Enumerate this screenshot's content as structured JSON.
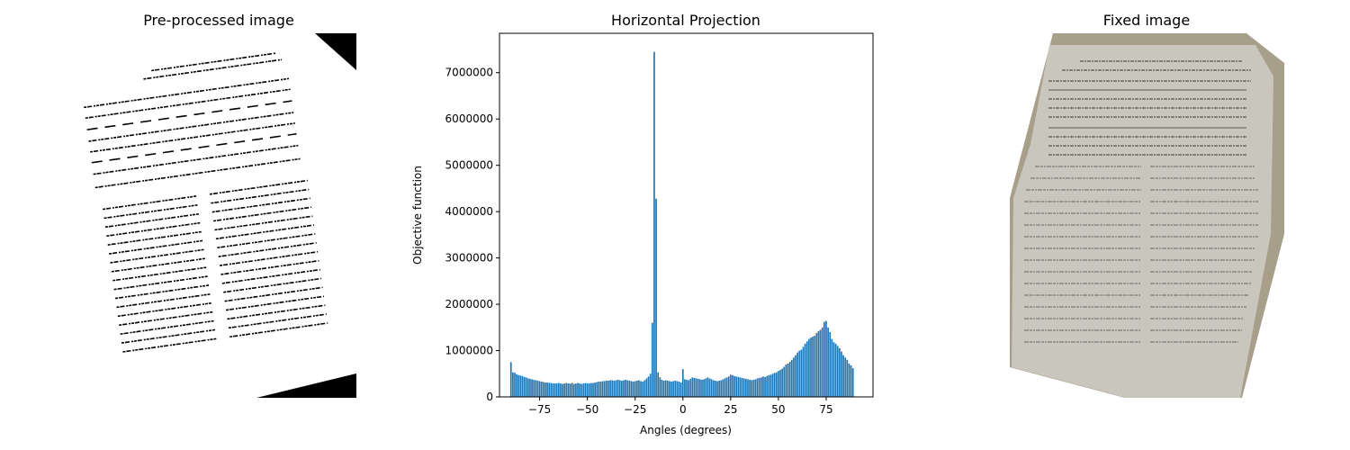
{
  "chart_data": [
    {
      "type": "image",
      "title": "Pre-processed image"
    },
    {
      "type": "bar",
      "title": "Horizontal Projection",
      "xlabel": "Angles (degrees)",
      "ylabel": "Objective function",
      "color": "#1f77b4",
      "x": [
        -90,
        -89,
        -88,
        -87,
        -86,
        -85,
        -84,
        -83,
        -82,
        -81,
        -80,
        -79,
        -78,
        -77,
        -76,
        -75,
        -74,
        -73,
        -72,
        -71,
        -70,
        -69,
        -68,
        -67,
        -66,
        -65,
        -64,
        -63,
        -62,
        -61,
        -60,
        -59,
        -58,
        -57,
        -56,
        -55,
        -54,
        -53,
        -52,
        -51,
        -50,
        -49,
        -48,
        -47,
        -46,
        -45,
        -44,
        -43,
        -42,
        -41,
        -40,
        -39,
        -38,
        -37,
        -36,
        -35,
        -34,
        -33,
        -32,
        -31,
        -30,
        -29,
        -28,
        -27,
        -26,
        -25,
        -24,
        -23,
        -22,
        -21,
        -20,
        -19,
        -18,
        -17,
        -16,
        -15,
        -14,
        -13,
        -12,
        -11,
        -10,
        -9,
        -8,
        -7,
        -6,
        -5,
        -4,
        -3,
        -2,
        -1,
        0,
        1,
        2,
        3,
        4,
        5,
        6,
        7,
        8,
        9,
        10,
        11,
        12,
        13,
        14,
        15,
        16,
        17,
        18,
        19,
        20,
        21,
        22,
        23,
        24,
        25,
        26,
        27,
        28,
        29,
        30,
        31,
        32,
        33,
        34,
        35,
        36,
        37,
        38,
        39,
        40,
        41,
        42,
        43,
        44,
        45,
        46,
        47,
        48,
        49,
        50,
        51,
        52,
        53,
        54,
        55,
        56,
        57,
        58,
        59,
        60,
        61,
        62,
        63,
        64,
        65,
        66,
        67,
        68,
        69,
        70,
        71,
        72,
        73,
        74,
        75,
        76,
        77,
        78,
        79,
        80,
        81,
        82,
        83,
        84,
        85,
        86,
        87,
        88,
        89
      ],
      "values": [
        750000,
        530000,
        520000,
        490000,
        470000,
        460000,
        450000,
        430000,
        420000,
        400000,
        390000,
        380000,
        370000,
        360000,
        350000,
        340000,
        330000,
        320000,
        310000,
        310000,
        300000,
        300000,
        290000,
        290000,
        290000,
        300000,
        290000,
        280000,
        290000,
        300000,
        290000,
        290000,
        300000,
        280000,
        290000,
        300000,
        290000,
        280000,
        290000,
        300000,
        290000,
        290000,
        300000,
        300000,
        310000,
        320000,
        330000,
        330000,
        340000,
        340000,
        350000,
        350000,
        360000,
        360000,
        350000,
        360000,
        370000,
        360000,
        350000,
        360000,
        370000,
        360000,
        350000,
        340000,
        330000,
        340000,
        350000,
        360000,
        340000,
        330000,
        360000,
        400000,
        440000,
        500000,
        1600000,
        7450000,
        4280000,
        530000,
        420000,
        370000,
        350000,
        360000,
        350000,
        340000,
        330000,
        340000,
        350000,
        340000,
        330000,
        310000,
        600000,
        380000,
        370000,
        360000,
        390000,
        420000,
        410000,
        400000,
        390000,
        380000,
        370000,
        380000,
        400000,
        420000,
        400000,
        380000,
        360000,
        350000,
        340000,
        350000,
        360000,
        380000,
        400000,
        420000,
        440000,
        480000,
        470000,
        450000,
        440000,
        430000,
        420000,
        410000,
        400000,
        390000,
        380000,
        370000,
        360000,
        370000,
        380000,
        400000,
        410000,
        420000,
        440000,
        430000,
        450000,
        470000,
        480000,
        500000,
        520000,
        530000,
        560000,
        580000,
        610000,
        650000,
        700000,
        720000,
        760000,
        800000,
        850000,
        900000,
        960000,
        1000000,
        1020000,
        1080000,
        1150000,
        1200000,
        1250000,
        1280000,
        1300000,
        1320000,
        1380000,
        1420000,
        1450000,
        1500000,
        1620000,
        1640000,
        1500000,
        1400000,
        1250000,
        1180000,
        1150000,
        1100000,
        1050000,
        980000,
        900000,
        850000,
        800000,
        720000,
        680000,
        620000
      ],
      "xlim": [
        -96,
        99.5
      ],
      "xticks": [
        {
          "value": -75,
          "label": "−75"
        },
        {
          "value": -50,
          "label": "−50"
        },
        {
          "value": -25,
          "label": "−25"
        },
        0,
        25,
        50,
        75
      ],
      "ylim": [
        0,
        7850000
      ],
      "yticks": [
        0,
        1000000,
        2000000,
        3000000,
        4000000,
        5000000,
        6000000,
        7000000
      ]
    },
    {
      "type": "image",
      "title": "Fixed image"
    }
  ]
}
